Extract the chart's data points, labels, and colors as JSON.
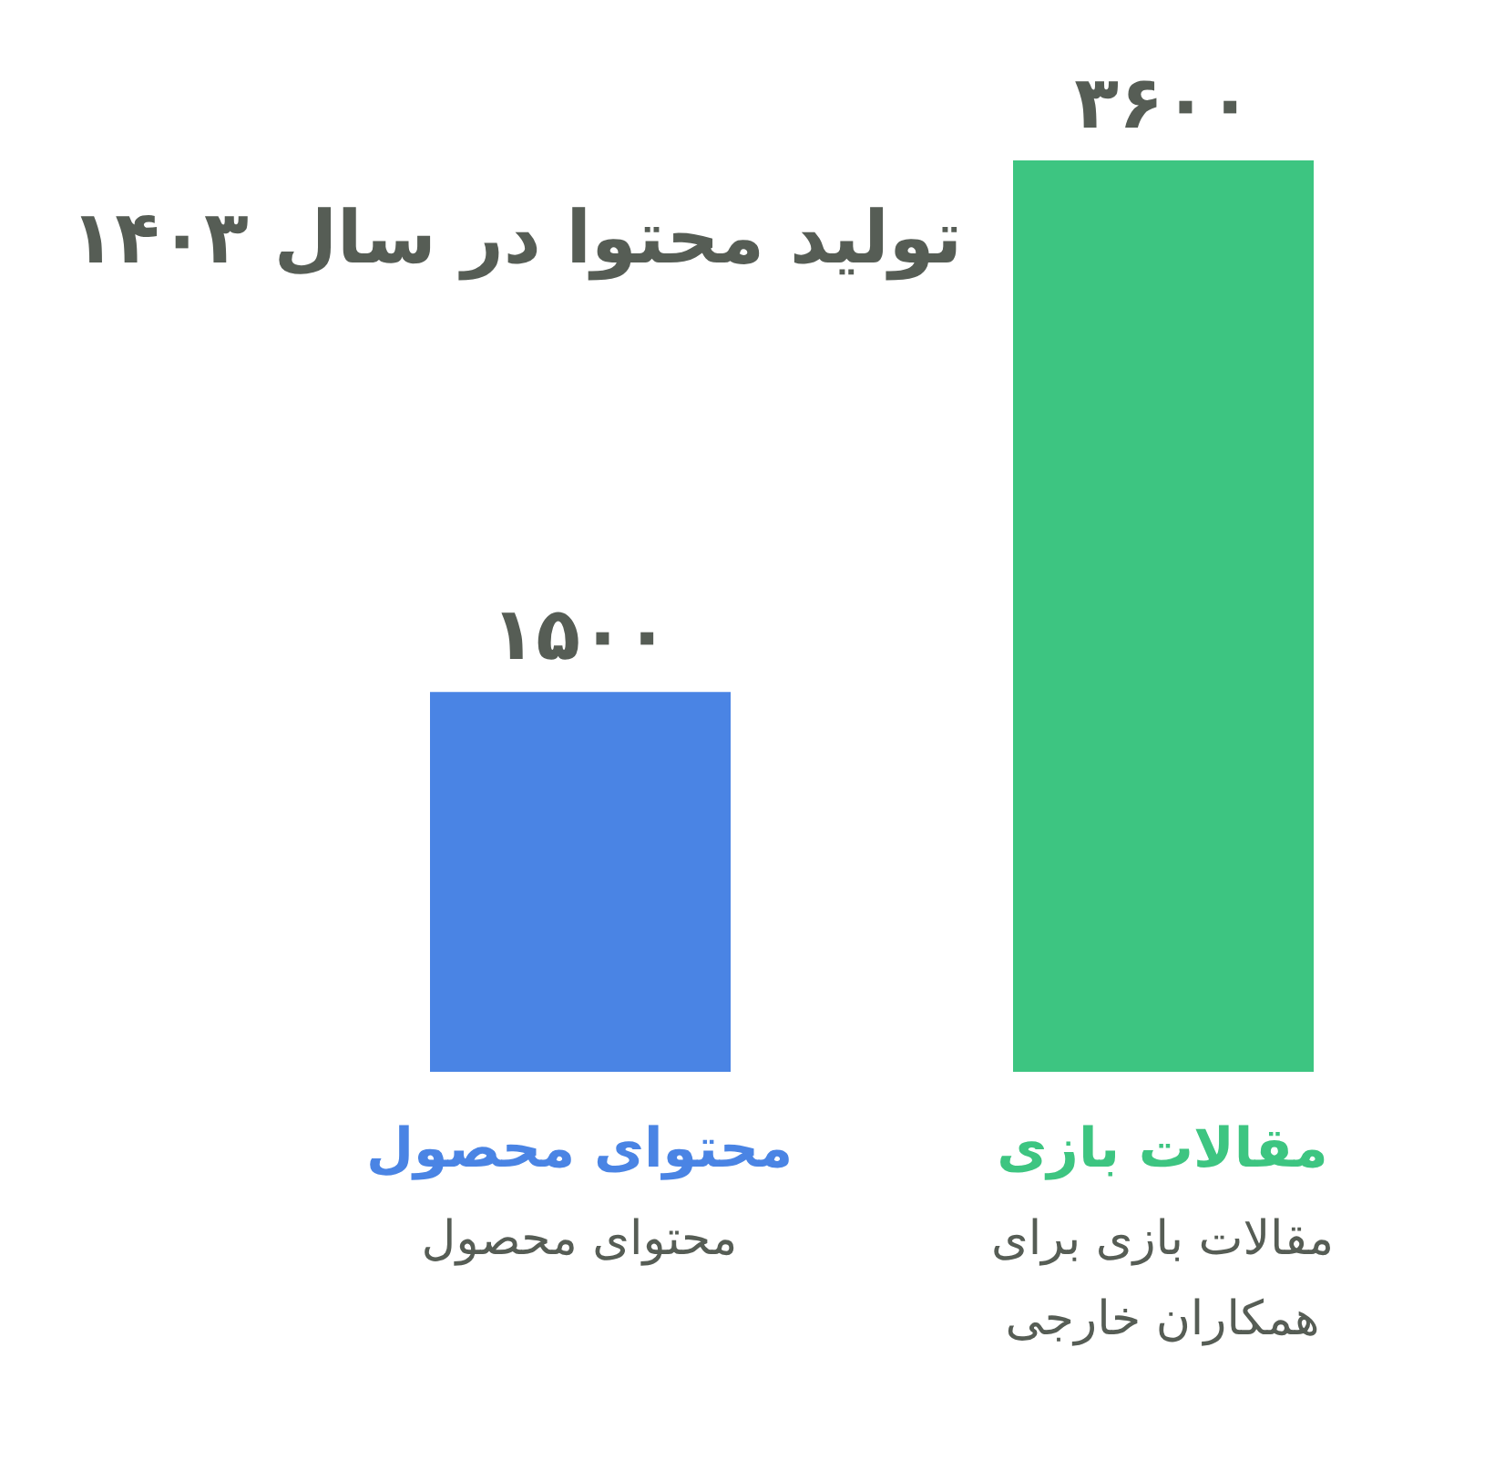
{
  "chart_data": {
    "type": "bar",
    "title": "تولید محتوا در سال ۱۴۰۳",
    "categories": [
      "محتوای محصول",
      "مقالات بازی"
    ],
    "values": [
      1500,
      3600
    ],
    "colors": [
      "#4a84e4",
      "#3dc581"
    ],
    "value_labels": [
      "۱۵۰۰",
      "۳۶۰۰"
    ],
    "annotations": [
      "محتوای محصول",
      "مقالات بازی برای همکاران خارجی"
    ]
  }
}
